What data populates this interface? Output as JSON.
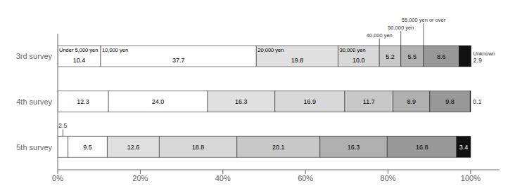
{
  "chart_data": {
    "type": "bar",
    "orientation": "horizontal",
    "stacked": true,
    "data_labels": true,
    "grid": false,
    "categories": [
      "3rd survey",
      "4th survey",
      "5th survey"
    ],
    "series": [
      {
        "name": "Under 5,000 yen",
        "color": "#ffffff",
        "values": [
          10.4,
          12.3,
          2.5
        ],
        "value_labels": [
          "10.4",
          "12.3",
          "2.5"
        ]
      },
      {
        "name": "10,000 yen",
        "color": "#ffffff",
        "values": [
          37.7,
          24.0,
          9.5
        ],
        "value_labels": [
          "37.7",
          "24.0",
          "9.5"
        ]
      },
      {
        "name": "20,000 yen",
        "color": "#e0e0e0",
        "values": [
          19.8,
          16.3,
          12.6
        ],
        "value_labels": [
          "19.8",
          "16.3",
          "12.6"
        ]
      },
      {
        "name": "30,000 yen",
        "color": "#d8d8d8",
        "values": [
          10.0,
          16.9,
          18.8
        ],
        "value_labels": [
          "10.0",
          "16.9",
          "18.8"
        ]
      },
      {
        "name": "40,000 yen",
        "color": "#c8c8c8",
        "values": [
          5.2,
          11.7,
          20.1
        ],
        "value_labels": [
          "5.2",
          "11.7",
          "20.1"
        ]
      },
      {
        "name": "50,000 yen",
        "color": "#b0b0b0",
        "values": [
          5.5,
          8.9,
          16.3
        ],
        "value_labels": [
          "5.5",
          "8.9",
          "16.3"
        ]
      },
      {
        "name": "55,000 yen or over",
        "color": "#989898",
        "values": [
          8.6,
          9.8,
          16.8
        ],
        "value_labels": [
          "8.6",
          "9.8",
          "16.8"
        ]
      },
      {
        "name": "Unknown",
        "color": "#111111",
        "values": [
          2.9,
          0.1,
          3.4
        ],
        "value_labels": [
          "2.9",
          "0.1",
          "3.4"
        ]
      }
    ],
    "xlim": [
      0,
      107
    ],
    "xticks": [
      {
        "value": 0,
        "label": "0%"
      },
      {
        "value": 20,
        "label": "20%"
      },
      {
        "value": 40,
        "label": "40%"
      },
      {
        "value": 60,
        "label": "60%"
      },
      {
        "value": 80,
        "label": "80%"
      },
      {
        "value": 100,
        "label": "100%"
      }
    ]
  }
}
